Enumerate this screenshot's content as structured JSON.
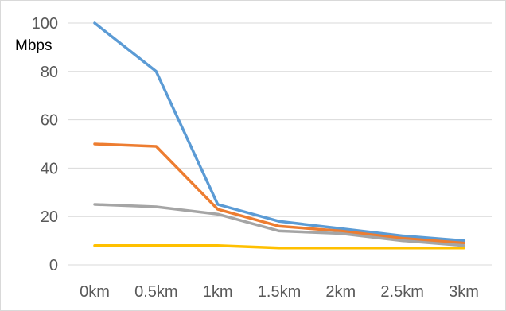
{
  "chart_data": {
    "type": "line",
    "title": "",
    "xlabel": "",
    "ylabel": "",
    "unit_label": "Mbps",
    "categories": [
      "0km",
      "0.5km",
      "1km",
      "1.5km",
      "2km",
      "2.5km",
      "3km"
    ],
    "y_ticks": [
      "0",
      "20",
      "40",
      "60",
      "80",
      "100"
    ],
    "ylim": [
      0,
      100
    ],
    "grid": true,
    "legend": "none",
    "series": [
      {
        "color": "#5b9bd5",
        "values": [
          100,
          80,
          25,
          18,
          15,
          12,
          10
        ]
      },
      {
        "color": "#ed7d31",
        "values": [
          50,
          49,
          23,
          16,
          14,
          11,
          9
        ]
      },
      {
        "color": "#a5a5a5",
        "values": [
          25,
          24,
          21,
          14,
          13,
          10,
          8
        ]
      },
      {
        "color": "#ffc000",
        "values": [
          8,
          8,
          8,
          7,
          7,
          7,
          7
        ]
      }
    ]
  }
}
